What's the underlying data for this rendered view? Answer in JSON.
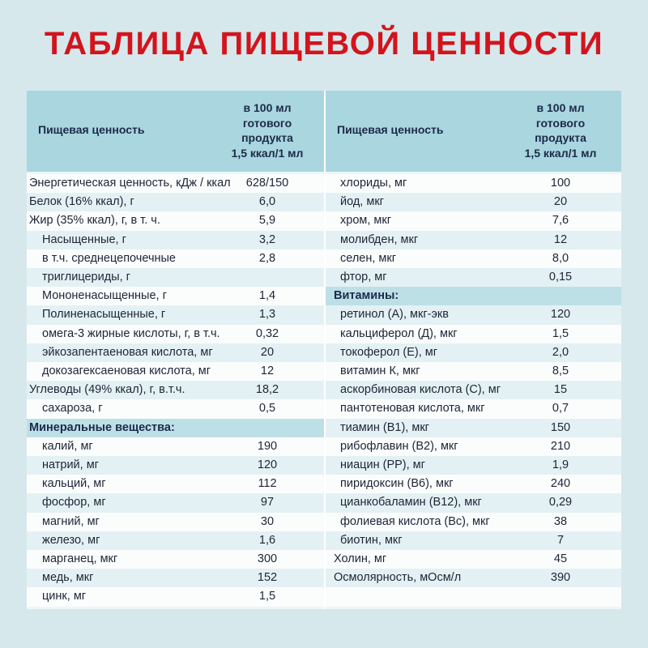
{
  "header": {
    "title": "ТАБЛИЦА ПИЩЕВОЙ ЦЕННОСТИ"
  },
  "left": {
    "header": {
      "label": "Пищевая ценность",
      "value": [
        "в 100 мл",
        "готового",
        "продукта",
        "1,5 ккал/1 мл"
      ]
    },
    "rows": [
      {
        "label": "Энергетическая ценность, кДж / ккал",
        "value": "628/150"
      },
      {
        "label": "Белок (16% ккал), г",
        "value": "6,0"
      },
      {
        "label": "Жир (35% ккал), г, в т. ч.",
        "value": "5,9"
      },
      {
        "label": "Насыщенные, г",
        "value": "3,2"
      },
      {
        "label": [
          "в т.ч. среднецепочечные",
          "триглицериды, г"
        ],
        "value": "2,8"
      },
      {
        "label": "Мононенасыщенные, г",
        "value": "1,4"
      },
      {
        "label": "Полиненасыщенные, г",
        "value": "1,3"
      },
      {
        "label": "омега-3 жирные кислоты, г, в т.ч.",
        "value": "0,32"
      },
      {
        "label": "эйкозапентаеновая кислота, мг",
        "value": "20"
      },
      {
        "label": "докозагексаеновая кислота, мг",
        "value": "12"
      },
      {
        "label": "Углеводы (49% ккал), г, в.т.ч.",
        "value": "18,2"
      },
      {
        "label": "сахароза, г",
        "value": "0,5"
      },
      {
        "section": "Минеральные вещества:"
      },
      {
        "label": "калий, мг",
        "value": "190"
      },
      {
        "label": "натрий, мг",
        "value": "120"
      },
      {
        "label": "кальций, мг",
        "value": "112"
      },
      {
        "label": "фосфор, мг",
        "value": "97"
      },
      {
        "label": "магний, мг",
        "value": "30"
      },
      {
        "label": "железо, мг",
        "value": "1,6"
      },
      {
        "label": "марганец, мкг",
        "value": "300"
      },
      {
        "label": "медь, мкг",
        "value": "152"
      },
      {
        "label": "цинк, мг",
        "value": "1,5"
      }
    ]
  },
  "right": {
    "header": {
      "label": "Пищевая ценность",
      "value": [
        "в 100 мл",
        "готового",
        "продукта",
        "1,5 ккал/1 мл"
      ]
    },
    "rows": [
      {
        "label": "хлориды, мг",
        "value": "100"
      },
      {
        "label": "йод, мкг",
        "value": "20"
      },
      {
        "label": "хром, мкг",
        "value": "7,6"
      },
      {
        "label": "молибден, мкг",
        "value": "12"
      },
      {
        "label": "селен, мкг",
        "value": "8,0"
      },
      {
        "label": "фтор, мг",
        "value": "0,15"
      },
      {
        "section": "Витамины:"
      },
      {
        "label": "ретинол (А), мкг-экв",
        "value": "120"
      },
      {
        "label": "кальциферол (Д), мкг",
        "value": "1,5"
      },
      {
        "label": "токоферол (Е), мг",
        "value": "2,0"
      },
      {
        "label": "витамин К, мкг",
        "value": "8,5"
      },
      {
        "label": "аскорбиновая кислота (С), мг",
        "value": "15"
      },
      {
        "label": "пантотеновая кислота, мкг",
        "value": "0,7"
      },
      {
        "label": "тиамин (В1), мкг",
        "value": "150"
      },
      {
        "label": "рибофлавин (В2), мкг",
        "value": "210"
      },
      {
        "label": "ниацин (РР), мг",
        "value": "1,9"
      },
      {
        "label": "пиридоксин (В6), мкг",
        "value": "240"
      },
      {
        "label": "цианкобаламин (В12), мкг",
        "value": "0,29"
      },
      {
        "label": "фолиевая кислота (Вс), мкг",
        "value": "38"
      },
      {
        "label": "биотин, мкг",
        "value": "7"
      },
      {
        "label": "Холин, мг",
        "value": "45"
      },
      {
        "label": "Осмолярность, мОсм/л",
        "value": "390"
      }
    ]
  }
}
